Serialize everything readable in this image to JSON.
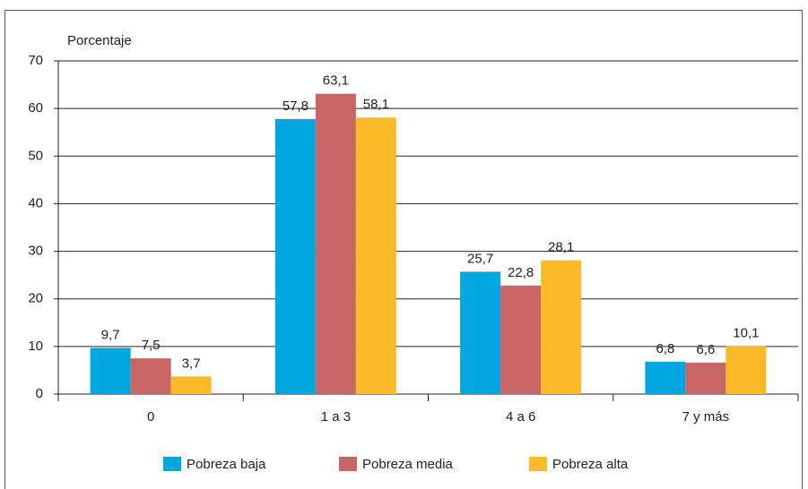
{
  "chart_data": {
    "type": "bar",
    "ylabel": "Porcentaje",
    "categories": [
      "0",
      "1 a 3",
      "4 a 6",
      "7 y más"
    ],
    "series": [
      {
        "name": "Pobreza baja",
        "color": "#00a6e0",
        "values": [
          9.7,
          57.8,
          25.7,
          6.8
        ],
        "value_labels": [
          "9,7",
          "57,8",
          "25,7",
          "6,8"
        ]
      },
      {
        "name": "Pobreza media",
        "color": "#c96565",
        "values": [
          7.5,
          63.1,
          22.8,
          6.6
        ],
        "value_labels": [
          "7,5",
          "63,1",
          "22,8",
          "6,6"
        ]
      },
      {
        "name": "Pobreza alta",
        "color": "#fbb927",
        "values": [
          3.7,
          58.1,
          28.1,
          10.1
        ],
        "value_labels": [
          "3,7",
          "58,1",
          "28,1",
          "10,1"
        ]
      }
    ],
    "ylim": [
      0,
      70
    ],
    "yticks": [
      0,
      10,
      20,
      30,
      40,
      50,
      60,
      70
    ],
    "grid": true,
    "legend": "bottom"
  }
}
